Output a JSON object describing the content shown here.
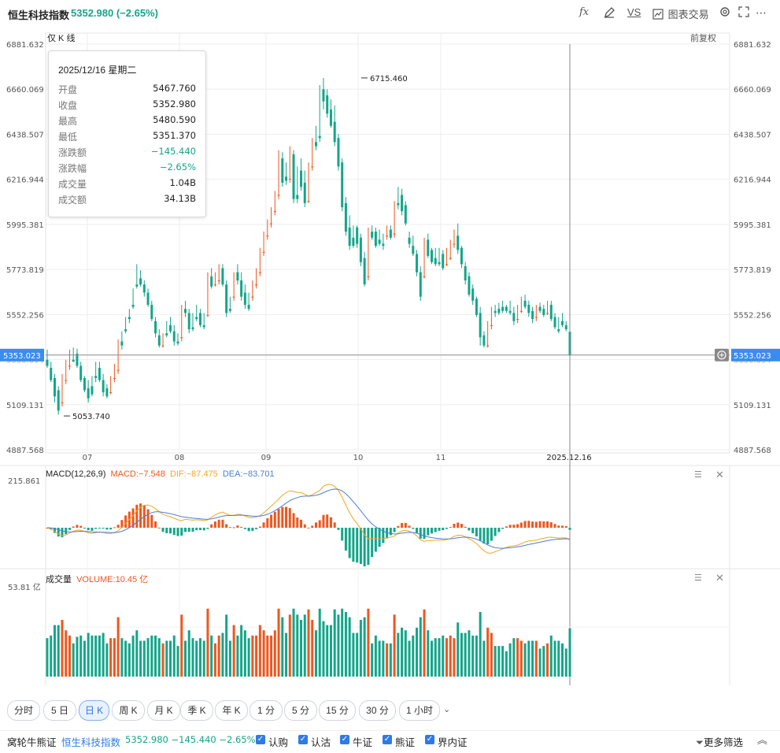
{
  "header": {
    "title": "恒生科技指数",
    "price": "5352.980 (−2.65%)",
    "tools": [
      {
        "label": "fx",
        "icon": "formula-icon"
      },
      {
        "label": "",
        "icon": "pen-icon"
      },
      {
        "label": "VS",
        "icon": "compare-icon"
      },
      {
        "label": "图表交易",
        "icon": "chart-trade-icon"
      },
      {
        "label": "",
        "icon": "settings-icon"
      },
      {
        "label": "",
        "icon": "fullscreen-icon"
      },
      {
        "label": "",
        "icon": "more-icon"
      }
    ]
  },
  "main_chart": {
    "label": "仅 K 线",
    "adjust": "前复权",
    "y_ticks": [
      "6881.632",
      "6660.069",
      "6438.507",
      "6216.944",
      "5995.381",
      "5773.819",
      "5552.256",
      "5330.694",
      "5109.131",
      "4887.568"
    ],
    "x_ticks": [
      "07",
      "08",
      "09",
      "10",
      "11",
      "2025.12.16"
    ],
    "crosshair_value": "5353.023",
    "max_label": "6715.460",
    "min_label": "5053.740"
  },
  "tooltip": {
    "date": "2025/12/16 星期二",
    "rows": [
      {
        "label": "开盘",
        "value": "5467.760",
        "neg": false
      },
      {
        "label": "收盘",
        "value": "5352.980",
        "neg": false
      },
      {
        "label": "最高",
        "value": "5480.590",
        "neg": false
      },
      {
        "label": "最低",
        "value": "5351.370",
        "neg": false
      },
      {
        "label": "涨跌额",
        "value": "−145.440",
        "neg": true
      },
      {
        "label": "涨跌幅",
        "value": "−2.65%",
        "neg": true
      },
      {
        "label": "成交量",
        "value": "1.04B",
        "neg": false
      },
      {
        "label": "成交额",
        "value": "34.13B",
        "neg": false
      }
    ]
  },
  "macd": {
    "name": "MACD(12,26,9)",
    "macd": "MACD:−7.548",
    "dif": "DIF:−87.475",
    "dea": "DEA:−83.701",
    "y_top": "215.861"
  },
  "volume": {
    "name": "成交量",
    "value": "VOLUME:10.45 亿",
    "y_top": "53.81 亿"
  },
  "timeframes": [
    "分时",
    "5 日",
    "日 K",
    "周 K",
    "月 K",
    "季 K",
    "年 K",
    "1 分",
    "5 分",
    "15 分",
    "30 分",
    "1 小时"
  ],
  "active_timeframe": "日 K",
  "bottom": {
    "title": "窝轮牛熊证",
    "index_name": "恒生科技指数",
    "quote": "5352.980 −145.440 −2.65%",
    "checks": [
      "认购",
      "认沽",
      "牛证",
      "熊证",
      "界内证"
    ],
    "filter": "更多筛选"
  },
  "colors": {
    "up": "#f0561d",
    "down": "#14a58a",
    "dif": "#f5a623",
    "dea": "#4a7fd6",
    "accent": "#2f7be6"
  },
  "chart_data": {
    "type": "candlestick",
    "series_name": "恒生科技指数",
    "ylim": [
      4887.568,
      6881.632
    ],
    "ohlc": [
      [
        5330,
        5380,
        5300,
        5290
      ],
      [
        5290,
        5320,
        5230,
        5220
      ],
      [
        5240,
        5260,
        5150,
        5120
      ],
      [
        5180,
        5200,
        5080,
        5060
      ],
      [
        5120,
        5260,
        5120,
        5100
      ],
      [
        5230,
        5330,
        5230,
        5210
      ],
      [
        5300,
        5380,
        5300,
        5280
      ],
      [
        5330,
        5390,
        5320,
        5320
      ],
      [
        5360,
        5385,
        5300,
        5290
      ],
      [
        5300,
        5320,
        5230,
        5220
      ],
      [
        5240,
        5250,
        5180,
        5170
      ],
      [
        5190,
        5230,
        5140,
        5120
      ],
      [
        5200,
        5250,
        5160,
        5150
      ],
      [
        5250,
        5320,
        5240,
        5220
      ],
      [
        5290,
        5320,
        5230,
        5220
      ],
      [
        5230,
        5260,
        5170,
        5150
      ],
      [
        5190,
        5210,
        5150,
        5140
      ],
      [
        5170,
        5250,
        5170,
        5160
      ],
      [
        5240,
        5310,
        5240,
        5220
      ],
      [
        5280,
        5430,
        5280,
        5260
      ],
      [
        5420,
        5470,
        5400,
        5380
      ],
      [
        5480,
        5540,
        5470,
        5460
      ],
      [
        5540,
        5580,
        5530,
        5510
      ],
      [
        5600,
        5680,
        5590,
        5580
      ],
      [
        5700,
        5800,
        5690,
        5680
      ],
      [
        5730,
        5770,
        5700,
        5690
      ],
      [
        5700,
        5720,
        5660,
        5640
      ],
      [
        5660,
        5680,
        5600,
        5590
      ],
      [
        5600,
        5620,
        5530,
        5520
      ],
      [
        5520,
        5540,
        5460,
        5440
      ],
      [
        5450,
        5480,
        5400,
        5390
      ],
      [
        5400,
        5460,
        5400,
        5390
      ],
      [
        5460,
        5520,
        5450,
        5440
      ],
      [
        5500,
        5540,
        5470,
        5460
      ],
      [
        5470,
        5500,
        5420,
        5400
      ],
      [
        5420,
        5460,
        5410,
        5400
      ],
      [
        5440,
        5600,
        5440,
        5420
      ],
      [
        5580,
        5620,
        5560,
        5540
      ],
      [
        5560,
        5580,
        5480,
        5460
      ],
      [
        5490,
        5560,
        5480,
        5470
      ],
      [
        5540,
        5600,
        5530,
        5520
      ],
      [
        5560,
        5580,
        5500,
        5490
      ],
      [
        5500,
        5560,
        5490,
        5480
      ],
      [
        5550,
        5760,
        5550,
        5540
      ],
      [
        5740,
        5780,
        5690,
        5680
      ],
      [
        5700,
        5760,
        5700,
        5690
      ],
      [
        5720,
        5800,
        5720,
        5700
      ],
      [
        5780,
        5800,
        5700,
        5690
      ],
      [
        5700,
        5720,
        5560,
        5540
      ],
      [
        5580,
        5640,
        5570,
        5560
      ],
      [
        5640,
        5760,
        5640,
        5620
      ],
      [
        5760,
        5800,
        5720,
        5700
      ],
      [
        5720,
        5760,
        5640,
        5620
      ],
      [
        5660,
        5700,
        5600,
        5580
      ],
      [
        5600,
        5660,
        5580,
        5570
      ],
      [
        5640,
        5720,
        5640,
        5620
      ],
      [
        5700,
        5780,
        5700,
        5680
      ],
      [
        5760,
        5880,
        5760,
        5740
      ],
      [
        5860,
        5960,
        5860,
        5840
      ],
      [
        5940,
        6020,
        5940,
        5920
      ],
      [
        6000,
        6080,
        6000,
        5980
      ],
      [
        6060,
        6160,
        6060,
        6040
      ],
      [
        6140,
        6360,
        6140,
        6120
      ],
      [
        6320,
        6350,
        6200,
        6180
      ],
      [
        6230,
        6300,
        6210,
        6190
      ],
      [
        6220,
        6380,
        6220,
        6200
      ],
      [
        6340,
        6360,
        6120,
        6100
      ],
      [
        6140,
        6280,
        6120,
        6100
      ],
      [
        6260,
        6320,
        6180,
        6160
      ],
      [
        6200,
        6260,
        6100,
        6080
      ],
      [
        6110,
        6300,
        6110,
        6100
      ],
      [
        6280,
        6420,
        6280,
        6260
      ],
      [
        6400,
        6480,
        6380,
        6360
      ],
      [
        6430,
        6680,
        6420,
        6400
      ],
      [
        6660,
        6715,
        6600,
        6560
      ],
      [
        6630,
        6660,
        6540,
        6520
      ],
      [
        6560,
        6610,
        6480,
        6470
      ],
      [
        6500,
        6580,
        6400,
        6380
      ],
      [
        6420,
        6440,
        6280,
        6260
      ],
      [
        6300,
        6320,
        6080,
        6060
      ],
      [
        6100,
        6130,
        5960,
        5940
      ],
      [
        5980,
        6040,
        5890,
        5870
      ],
      [
        5930,
        5990,
        5890,
        5880
      ],
      [
        5980,
        5990,
        5900,
        5880
      ],
      [
        5930,
        5950,
        5810,
        5790
      ],
      [
        5830,
        5860,
        5700,
        5690
      ],
      [
        5740,
        5980,
        5740,
        5720
      ],
      [
        5960,
        5990,
        5930,
        5920
      ],
      [
        5960,
        5980,
        5890,
        5880
      ],
      [
        5920,
        5970,
        5900,
        5890
      ],
      [
        5900,
        5950,
        5890,
        5870
      ],
      [
        5940,
        5990,
        5940,
        5920
      ],
      [
        5970,
        5990,
        5930,
        5920
      ],
      [
        5950,
        6110,
        5950,
        5930
      ],
      [
        6100,
        6180,
        6090,
        6070
      ],
      [
        6140,
        6170,
        6060,
        6040
      ],
      [
        6090,
        6110,
        6000,
        5990
      ],
      [
        5930,
        5960,
        5900,
        5880
      ],
      [
        5890,
        5940,
        5850,
        5840
      ],
      [
        5850,
        5870,
        5760,
        5740
      ],
      [
        5760,
        5790,
        5640,
        5620
      ],
      [
        5740,
        5930,
        5740,
        5730
      ],
      [
        5920,
        5950,
        5840,
        5830
      ],
      [
        5870,
        5880,
        5810,
        5800
      ],
      [
        5830,
        5880,
        5800,
        5790
      ],
      [
        5810,
        5880,
        5800,
        5790
      ],
      [
        5850,
        5870,
        5780,
        5770
      ],
      [
        5800,
        5880,
        5800,
        5790
      ],
      [
        5830,
        5920,
        5830,
        5820
      ],
      [
        5900,
        5970,
        5900,
        5880
      ],
      [
        5940,
        6000,
        5870,
        5850
      ],
      [
        5880,
        5890,
        5800,
        5780
      ],
      [
        5790,
        5810,
        5720,
        5700
      ],
      [
        5740,
        5760,
        5650,
        5640
      ],
      [
        5680,
        5700,
        5620,
        5600
      ],
      [
        5630,
        5640,
        5550,
        5540
      ],
      [
        5560,
        5590,
        5440,
        5400
      ],
      [
        5450,
        5470,
        5400,
        5390
      ],
      [
        5400,
        5520,
        5400,
        5390
      ],
      [
        5500,
        5590,
        5500,
        5480
      ],
      [
        5570,
        5600,
        5560,
        5540
      ],
      [
        5580,
        5610,
        5560,
        5550
      ],
      [
        5590,
        5620,
        5570,
        5560
      ],
      [
        5590,
        5600,
        5570,
        5560
      ],
      [
        5570,
        5620,
        5560,
        5550
      ],
      [
        5560,
        5590,
        5520,
        5500
      ],
      [
        5530,
        5600,
        5530,
        5510
      ],
      [
        5570,
        5640,
        5570,
        5560
      ],
      [
        5620,
        5650,
        5590,
        5580
      ],
      [
        5600,
        5620,
        5560,
        5540
      ],
      [
        5570,
        5590,
        5530,
        5510
      ],
      [
        5540,
        5600,
        5540,
        5520
      ],
      [
        5590,
        5610,
        5570,
        5560
      ],
      [
        5580,
        5600,
        5550,
        5540
      ],
      [
        5560,
        5620,
        5560,
        5550
      ],
      [
        5600,
        5620,
        5530,
        5520
      ],
      [
        5540,
        5560,
        5490,
        5480
      ],
      [
        5480,
        5540,
        5470,
        5460
      ],
      [
        5520,
        5560,
        5500,
        5490
      ],
      [
        5500,
        5520,
        5480,
        5470
      ],
      [
        5467.76,
        5480.59,
        5351.37,
        5352.98
      ]
    ],
    "max_point": 6715.46,
    "min_point": 5053.74
  }
}
